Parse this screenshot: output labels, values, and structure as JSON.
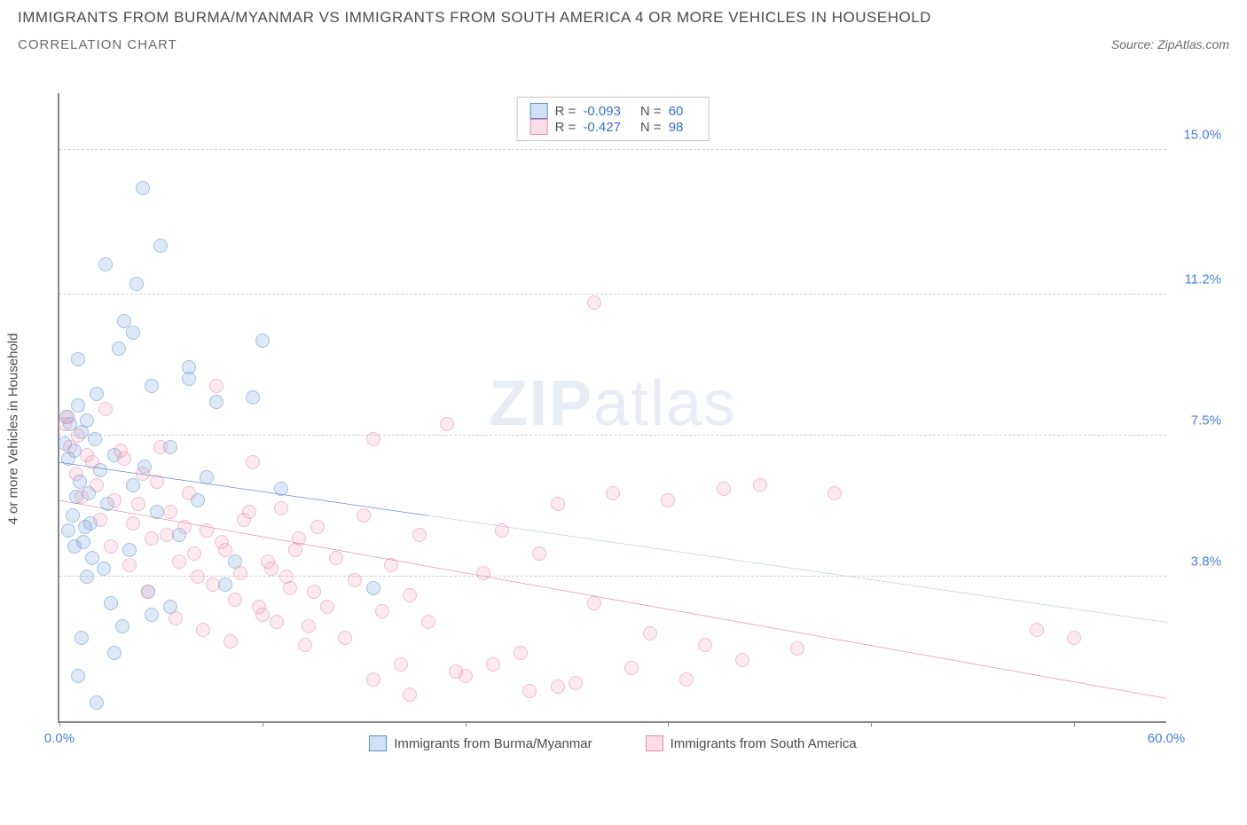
{
  "header": {
    "title": "IMMIGRANTS FROM BURMA/MYANMAR VS IMMIGRANTS FROM SOUTH AMERICA 4 OR MORE VEHICLES IN HOUSEHOLD",
    "subtitle": "CORRELATION CHART",
    "source": "Source: ZipAtlas.com"
  },
  "chart": {
    "type": "scatter",
    "ylabel": "4 or more Vehicles in Household",
    "xlim": [
      0,
      60
    ],
    "ylim": [
      0,
      16.5
    ],
    "xticks": [
      {
        "val": 0,
        "label": "0.0%"
      },
      {
        "val": 60,
        "label": "60.0%"
      }
    ],
    "xtick_marks": [
      0,
      11,
      22,
      33,
      44,
      55
    ],
    "yticks": [
      {
        "val": 3.8,
        "label": "3.8%"
      },
      {
        "val": 7.5,
        "label": "7.5%"
      },
      {
        "val": 11.2,
        "label": "11.2%"
      },
      {
        "val": 15.0,
        "label": "15.0%"
      }
    ],
    "watermark": {
      "bold": "ZIP",
      "rest": "atlas"
    },
    "series": [
      {
        "name": "Immigrants from Burma/Myanmar",
        "color_key": "blue",
        "stats": {
          "R": "-0.093",
          "N": "60"
        },
        "trend": {
          "x1": 0,
          "y1": 6.8,
          "x2": 20,
          "y2": 5.4,
          "ext_x2": 60,
          "ext_y2": 2.6
        },
        "points": [
          [
            0.3,
            7.3
          ],
          [
            0.4,
            8.0
          ],
          [
            0.5,
            6.9
          ],
          [
            0.6,
            7.8
          ],
          [
            0.7,
            5.4
          ],
          [
            0.8,
            7.1
          ],
          [
            0.9,
            5.9
          ],
          [
            1.0,
            8.3
          ],
          [
            1.1,
            6.3
          ],
          [
            1.2,
            7.6
          ],
          [
            1.3,
            4.7
          ],
          [
            1.4,
            5.1
          ],
          [
            1.5,
            7.9
          ],
          [
            1.6,
            6.0
          ],
          [
            1.7,
            5.2
          ],
          [
            1.8,
            4.3
          ],
          [
            1.9,
            7.4
          ],
          [
            2.0,
            8.6
          ],
          [
            2.2,
            6.6
          ],
          [
            2.4,
            4.0
          ],
          [
            2.6,
            5.7
          ],
          [
            2.8,
            3.1
          ],
          [
            3.0,
            7.0
          ],
          [
            3.2,
            9.8
          ],
          [
            3.5,
            10.5
          ],
          [
            3.8,
            4.5
          ],
          [
            4.0,
            6.2
          ],
          [
            4.2,
            11.5
          ],
          [
            4.5,
            14.0
          ],
          [
            4.8,
            3.4
          ],
          [
            5.0,
            8.8
          ],
          [
            5.3,
            5.5
          ],
          [
            5.5,
            12.5
          ],
          [
            6.0,
            7.2
          ],
          [
            6.5,
            4.9
          ],
          [
            7.0,
            9.0
          ],
          [
            7.5,
            5.8
          ],
          [
            8.0,
            6.4
          ],
          [
            8.5,
            8.4
          ],
          [
            9.0,
            3.6
          ],
          [
            1.0,
            1.2
          ],
          [
            2.0,
            0.5
          ],
          [
            3.0,
            1.8
          ],
          [
            4.0,
            10.2
          ],
          [
            5.0,
            2.8
          ],
          [
            11.0,
            10.0
          ],
          [
            6.0,
            3.0
          ],
          [
            7.0,
            9.3
          ],
          [
            2.5,
            12.0
          ],
          [
            1.5,
            3.8
          ],
          [
            0.8,
            4.6
          ],
          [
            1.2,
            2.2
          ],
          [
            3.4,
            2.5
          ],
          [
            4.6,
            6.7
          ],
          [
            10.5,
            8.5
          ],
          [
            12.0,
            6.1
          ],
          [
            9.5,
            4.2
          ],
          [
            17.0,
            3.5
          ],
          [
            1.0,
            9.5
          ],
          [
            0.5,
            5.0
          ]
        ]
      },
      {
        "name": "Immigrants from South America",
        "color_key": "pink",
        "stats": {
          "R": "-0.427",
          "N": "98"
        },
        "trend": {
          "x1": 0,
          "y1": 5.8,
          "x2": 60,
          "y2": 0.6
        },
        "points": [
          [
            0.5,
            8.0
          ],
          [
            1.0,
            7.5
          ],
          [
            1.5,
            7.0
          ],
          [
            2.0,
            6.2
          ],
          [
            2.5,
            8.2
          ],
          [
            3.0,
            5.8
          ],
          [
            3.5,
            6.9
          ],
          [
            4.0,
            5.2
          ],
          [
            4.5,
            6.5
          ],
          [
            5.0,
            4.8
          ],
          [
            5.5,
            7.2
          ],
          [
            6.0,
            5.5
          ],
          [
            6.5,
            4.2
          ],
          [
            7.0,
            6.0
          ],
          [
            7.5,
            3.8
          ],
          [
            8.0,
            5.0
          ],
          [
            8.5,
            8.8
          ],
          [
            9.0,
            4.5
          ],
          [
            9.5,
            3.2
          ],
          [
            10.0,
            5.3
          ],
          [
            10.5,
            6.8
          ],
          [
            11.0,
            2.8
          ],
          [
            11.5,
            4.0
          ],
          [
            12.0,
            5.6
          ],
          [
            12.5,
            3.5
          ],
          [
            13.0,
            4.8
          ],
          [
            13.5,
            2.5
          ],
          [
            14.0,
            5.1
          ],
          [
            14.5,
            3.0
          ],
          [
            15.0,
            4.3
          ],
          [
            15.5,
            2.2
          ],
          [
            16.0,
            3.7
          ],
          [
            16.5,
            5.4
          ],
          [
            17.0,
            7.4
          ],
          [
            17.5,
            2.9
          ],
          [
            18.0,
            4.1
          ],
          [
            18.5,
            1.5
          ],
          [
            19.0,
            3.3
          ],
          [
            19.5,
            4.9
          ],
          [
            20.0,
            2.6
          ],
          [
            21.0,
            7.8
          ],
          [
            22.0,
            1.2
          ],
          [
            23.0,
            3.9
          ],
          [
            24.0,
            5.0
          ],
          [
            25.0,
            1.8
          ],
          [
            26.0,
            4.4
          ],
          [
            27.0,
            5.7
          ],
          [
            28.0,
            1.0
          ],
          [
            29.0,
            3.1
          ],
          [
            30.0,
            6.0
          ],
          [
            31.0,
            1.4
          ],
          [
            32.0,
            2.3
          ],
          [
            33.0,
            5.8
          ],
          [
            34.0,
            1.1
          ],
          [
            35.0,
            2.0
          ],
          [
            36.0,
            6.1
          ],
          [
            37.0,
            1.6
          ],
          [
            38.0,
            6.2
          ],
          [
            40.0,
            1.9
          ],
          [
            42.0,
            6.0
          ],
          [
            53.0,
            2.4
          ],
          [
            55.0,
            2.2
          ],
          [
            29.0,
            11.0
          ],
          [
            0.3,
            7.8
          ],
          [
            0.6,
            7.2
          ],
          [
            0.9,
            6.5
          ],
          [
            1.2,
            5.9
          ],
          [
            1.8,
            6.8
          ],
          [
            2.2,
            5.3
          ],
          [
            2.8,
            4.6
          ],
          [
            3.3,
            7.1
          ],
          [
            3.8,
            4.1
          ],
          [
            4.3,
            5.7
          ],
          [
            4.8,
            3.4
          ],
          [
            5.3,
            6.3
          ],
          [
            5.8,
            4.9
          ],
          [
            6.3,
            2.7
          ],
          [
            6.8,
            5.1
          ],
          [
            7.3,
            4.4
          ],
          [
            7.8,
            2.4
          ],
          [
            8.3,
            3.6
          ],
          [
            8.8,
            4.7
          ],
          [
            9.3,
            2.1
          ],
          [
            9.8,
            3.9
          ],
          [
            10.3,
            5.5
          ],
          [
            10.8,
            3.0
          ],
          [
            11.3,
            4.2
          ],
          [
            11.8,
            2.6
          ],
          [
            12.3,
            3.8
          ],
          [
            12.8,
            4.5
          ],
          [
            13.3,
            2.0
          ],
          [
            13.8,
            3.4
          ],
          [
            25.5,
            0.8
          ],
          [
            27.0,
            0.9
          ],
          [
            21.5,
            1.3
          ],
          [
            23.5,
            1.5
          ],
          [
            19.0,
            0.7
          ],
          [
            17.0,
            1.1
          ]
        ]
      }
    ],
    "colors": {
      "blue_line": "#2e5fb5",
      "pink_line": "#e06890",
      "blue_fill": "rgba(120,165,225,0.45)",
      "pink_fill": "rgba(240,160,185,0.4)"
    }
  },
  "legend_bottom": [
    {
      "color_key": "blue",
      "label": "Immigrants from Burma/Myanmar"
    },
    {
      "color_key": "pink",
      "label": "Immigrants from South America"
    }
  ]
}
